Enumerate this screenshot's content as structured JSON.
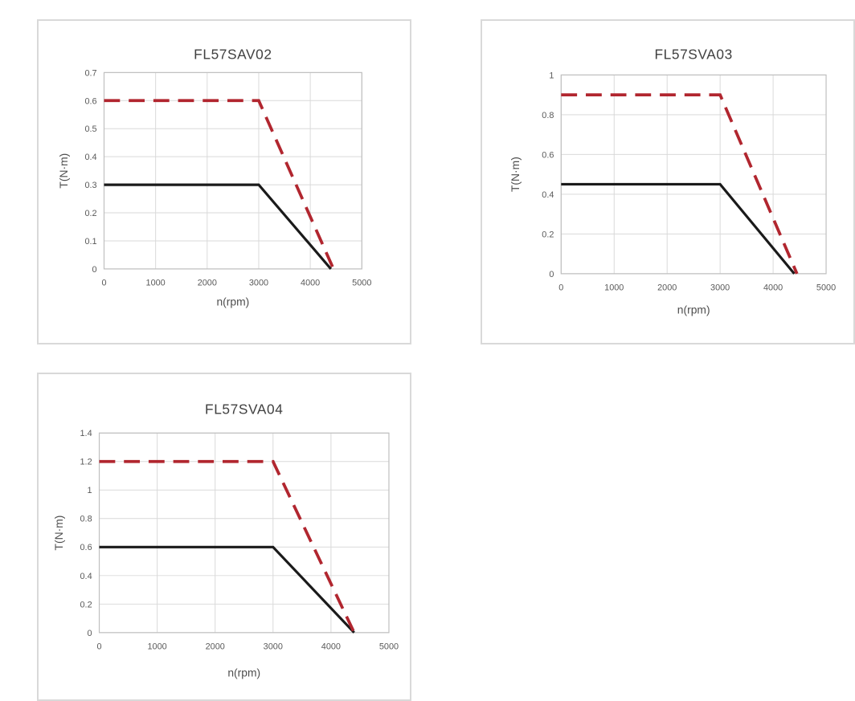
{
  "colors": {
    "background": "#ffffff",
    "panel_border": "#d9d9d9",
    "gridline": "#d9d9d9",
    "axis_box": "#bfbfbf",
    "title_text": "#404040",
    "tick_text": "#595959",
    "solid_line": "#1a1a1a",
    "dashed_line": "#b1262f"
  },
  "chart_data": [
    {
      "type": "line",
      "title": "FL57SAV02",
      "xlabel": "n(rpm)",
      "ylabel": "T(N·m)",
      "xlim": [
        0,
        5000
      ],
      "ylim": [
        0,
        0.7
      ],
      "grid": true,
      "legend": "none",
      "x_ticks": [
        0,
        1000,
        2000,
        3000,
        4000,
        5000
      ],
      "x_tick_labels": [
        "0",
        "1000",
        "2000",
        "3000",
        "4000",
        "5000"
      ],
      "y_ticks": [
        0,
        0.1,
        0.2,
        0.3,
        0.4,
        0.5,
        0.6,
        0.7
      ],
      "y_tick_labels": [
        "0",
        "0.1",
        "0.2",
        "0.3",
        "0.4",
        "0.5",
        "0.6",
        "0.7"
      ],
      "series": [
        {
          "name": "solid black curve",
          "style": "solid",
          "color": "#1a1a1a",
          "width": 3.2,
          "points": [
            [
              0,
              0.3
            ],
            [
              3000,
              0.3
            ],
            [
              4400,
              0
            ]
          ]
        },
        {
          "name": "dashed red curve",
          "style": "dashed",
          "color": "#b1262f",
          "width": 3.8,
          "dash_pattern": "20 11",
          "points": [
            [
              0,
              0.6
            ],
            [
              3000,
              0.6
            ],
            [
              4450,
              0
            ]
          ]
        }
      ]
    },
    {
      "type": "line",
      "title": "FL57SVA03",
      "xlabel": "n(rpm)",
      "ylabel": "T(N·m)",
      "xlim": [
        0,
        5000
      ],
      "ylim": [
        0,
        1
      ],
      "grid": true,
      "legend": "none",
      "x_ticks": [
        0,
        1000,
        2000,
        3000,
        4000,
        5000
      ],
      "x_tick_labels": [
        "0",
        "1000",
        "2000",
        "3000",
        "4000",
        "5000"
      ],
      "y_ticks": [
        0,
        0.2,
        0.4,
        0.6,
        0.8,
        1
      ],
      "y_tick_labels": [
        "0",
        "0.2",
        "0.4",
        "0.6",
        "0.8",
        "1"
      ],
      "series": [
        {
          "name": "solid black curve",
          "style": "solid",
          "color": "#1a1a1a",
          "width": 3.2,
          "points": [
            [
              0,
              0.45
            ],
            [
              3000,
              0.45
            ],
            [
              4400,
              0
            ]
          ]
        },
        {
          "name": "dashed red curve",
          "style": "dashed",
          "color": "#b1262f",
          "width": 3.8,
          "dash_pattern": "20 11",
          "points": [
            [
              0,
              0.9
            ],
            [
              3000,
              0.9
            ],
            [
              4450,
              0
            ]
          ]
        }
      ]
    },
    {
      "type": "line",
      "title": "FL57SVA04",
      "xlabel": "n(rpm)",
      "ylabel": "T(N·m)",
      "xlim": [
        0,
        5000
      ],
      "ylim": [
        0,
        1.4
      ],
      "grid": true,
      "legend": "none",
      "x_ticks": [
        0,
        1000,
        2000,
        3000,
        4000,
        5000
      ],
      "x_tick_labels": [
        "0",
        "1000",
        "2000",
        "3000",
        "4000",
        "5000"
      ],
      "y_ticks": [
        0,
        0.2,
        0.4,
        0.6,
        0.8,
        1,
        1.2,
        1.4
      ],
      "y_tick_labels": [
        "0",
        "0.2",
        "0.4",
        "0.6",
        "0.8",
        "1",
        "1.2",
        "1.4"
      ],
      "series": [
        {
          "name": "solid black curve",
          "style": "solid",
          "color": "#1a1a1a",
          "width": 3.2,
          "points": [
            [
              0,
              0.6
            ],
            [
              3000,
              0.6
            ],
            [
              4400,
              0
            ]
          ]
        },
        {
          "name": "dashed red curve",
          "style": "dashed",
          "color": "#b1262f",
          "width": 3.8,
          "dash_pattern": "20 11",
          "points": [
            [
              0,
              1.2
            ],
            [
              3000,
              1.2
            ],
            [
              4400,
              0
            ]
          ]
        }
      ]
    }
  ]
}
